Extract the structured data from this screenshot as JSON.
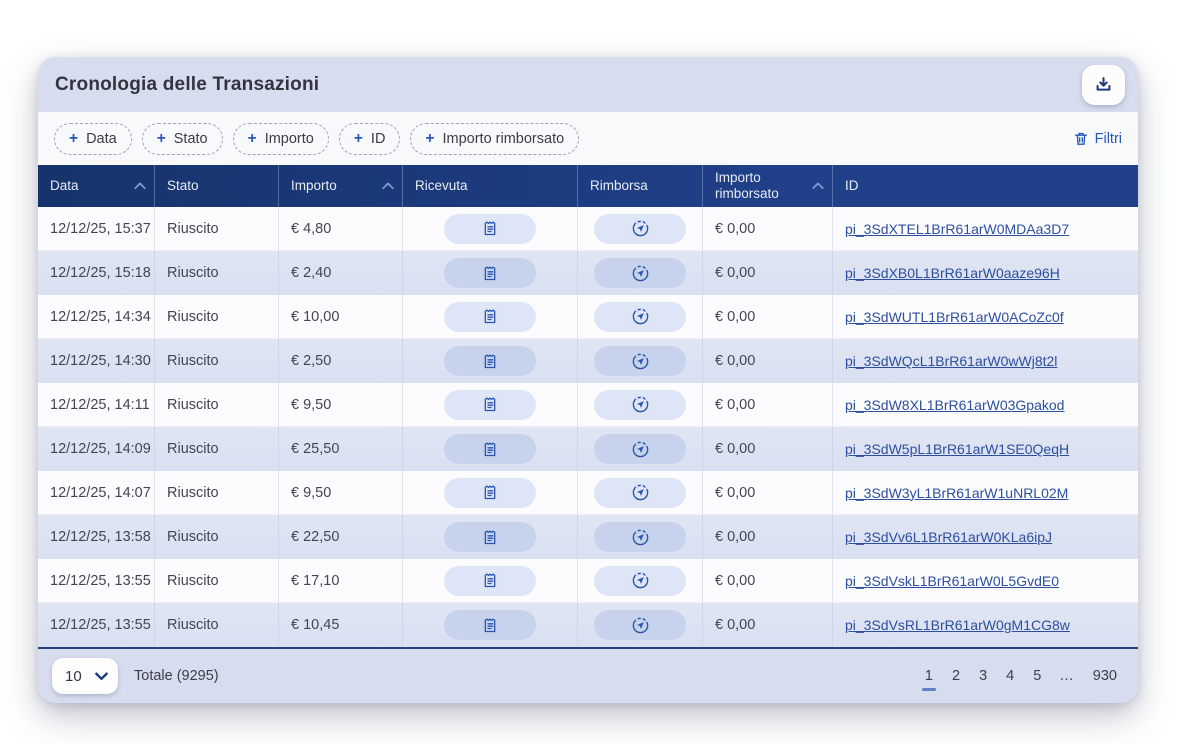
{
  "card": {
    "title": "Cronologia delle Transazioni"
  },
  "filters": {
    "plus": "+",
    "chips": [
      "Data",
      "Stato",
      "Importo",
      "ID",
      "Importo rimborsato"
    ],
    "clear_label": "Filtri"
  },
  "table": {
    "columns": [
      {
        "label": "Data",
        "sortable": true
      },
      {
        "label": "Stato",
        "sortable": false
      },
      {
        "label": "Importo",
        "sortable": true
      },
      {
        "label": "Ricevuta",
        "sortable": false
      },
      {
        "label": "Rimborsa",
        "sortable": false
      },
      {
        "label": "Importo rimborsato",
        "sortable": true
      },
      {
        "label": "ID",
        "sortable": false
      }
    ],
    "rows": [
      {
        "date": "12/12/25, 15:37",
        "status": "Riuscito",
        "amount": "€ 4,80",
        "refunded": "€ 0,00",
        "id": "pi_3SdXTEL1BrR61arW0MDAa3D7"
      },
      {
        "date": "12/12/25, 15:18",
        "status": "Riuscito",
        "amount": "€ 2,40",
        "refunded": "€ 0,00",
        "id": "pi_3SdXB0L1BrR61arW0aaze96H"
      },
      {
        "date": "12/12/25, 14:34",
        "status": "Riuscito",
        "amount": "€ 10,00",
        "refunded": "€ 0,00",
        "id": "pi_3SdWUTL1BrR61arW0ACoZc0f"
      },
      {
        "date": "12/12/25, 14:30",
        "status": "Riuscito",
        "amount": "€ 2,50",
        "refunded": "€ 0,00",
        "id": "pi_3SdWQcL1BrR61arW0wWj8t2l"
      },
      {
        "date": "12/12/25, 14:11",
        "status": "Riuscito",
        "amount": "€ 9,50",
        "refunded": "€ 0,00",
        "id": "pi_3SdW8XL1BrR61arW03Gpakod"
      },
      {
        "date": "12/12/25, 14:09",
        "status": "Riuscito",
        "amount": "€ 25,50",
        "refunded": "€ 0,00",
        "id": "pi_3SdW5pL1BrR61arW1SE0QeqH"
      },
      {
        "date": "12/12/25, 14:07",
        "status": "Riuscito",
        "amount": "€ 9,50",
        "refunded": "€ 0,00",
        "id": "pi_3SdW3yL1BrR61arW1uNRL02M"
      },
      {
        "date": "12/12/25, 13:58",
        "status": "Riuscito",
        "amount": "€ 22,50",
        "refunded": "€ 0,00",
        "id": "pi_3SdVv6L1BrR61arW0KLa6ipJ"
      },
      {
        "date": "12/12/25, 13:55",
        "status": "Riuscito",
        "amount": "€ 17,10",
        "refunded": "€ 0,00",
        "id": "pi_3SdVskL1BrR61arW0L5GvdE0"
      },
      {
        "date": "12/12/25, 13:55",
        "status": "Riuscito",
        "amount": "€ 10,45",
        "refunded": "€ 0,00",
        "id": "pi_3SdVsRL1BrR61arW0gM1CG8w"
      }
    ]
  },
  "footer": {
    "page_size": "10",
    "total_label": "Totale (9295)",
    "pages": [
      "1",
      "2",
      "3",
      "4",
      "5",
      "…",
      "930"
    ],
    "current_page": "1"
  },
  "colors": {
    "header_navy": "#1d3c7a",
    "accent_blue": "#2558b8",
    "band_lavender": "#d7dcee",
    "row_alt_lavender": "#dde3f2",
    "link_blue": "#2d4f9e"
  }
}
